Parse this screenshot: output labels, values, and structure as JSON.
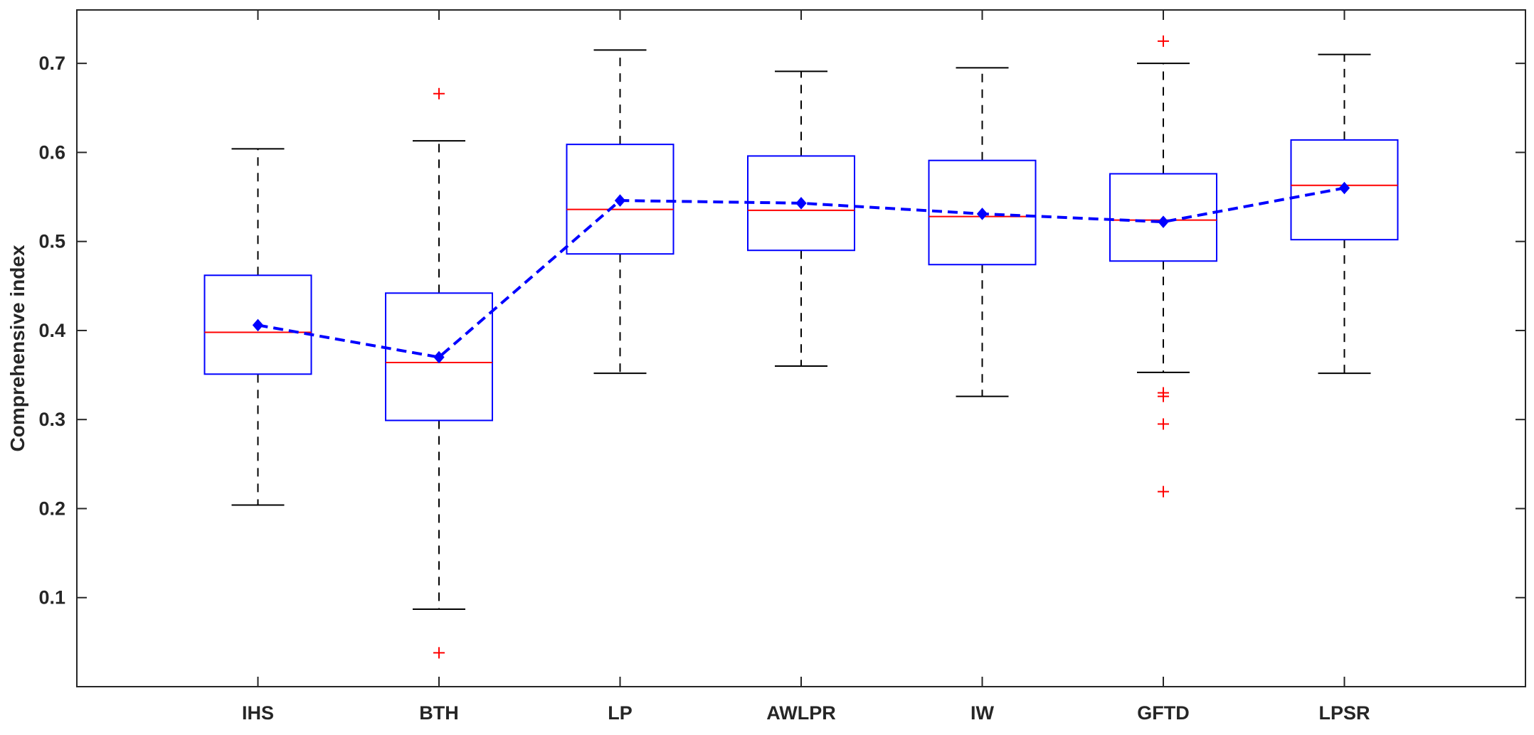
{
  "chart_data": {
    "type": "box",
    "ylabel": "Comprehensive index",
    "ylim": [
      0,
      0.76
    ],
    "yticks": [
      "0.1",
      "0.2",
      "0.3",
      "0.4",
      "0.5",
      "0.6",
      "0.7"
    ],
    "grid": false,
    "categories": [
      "IHS",
      "BTH",
      "LP",
      "AWLPR",
      "IW",
      "GFTD",
      "LPSR"
    ],
    "boxes": [
      {
        "category": "IHS",
        "whisker_low": 0.204,
        "q1": 0.351,
        "median": 0.398,
        "q3": 0.462,
        "whisker_high": 0.604,
        "mean": 0.406,
        "outliers": []
      },
      {
        "category": "BTH",
        "whisker_low": 0.087,
        "q1": 0.299,
        "median": 0.364,
        "q3": 0.442,
        "whisker_high": 0.613,
        "mean": 0.37,
        "outliers": [
          0.666,
          0.038
        ]
      },
      {
        "category": "LP",
        "whisker_low": 0.352,
        "q1": 0.486,
        "median": 0.536,
        "q3": 0.609,
        "whisker_high": 0.715,
        "mean": 0.546,
        "outliers": []
      },
      {
        "category": "AWLPR",
        "whisker_low": 0.36,
        "q1": 0.49,
        "median": 0.535,
        "q3": 0.596,
        "whisker_high": 0.691,
        "mean": 0.543,
        "outliers": []
      },
      {
        "category": "IW",
        "whisker_low": 0.326,
        "q1": 0.474,
        "median": 0.528,
        "q3": 0.591,
        "whisker_high": 0.695,
        "mean": 0.531,
        "outliers": []
      },
      {
        "category": "GFTD",
        "whisker_low": 0.353,
        "q1": 0.478,
        "median": 0.524,
        "q3": 0.576,
        "whisker_high": 0.7,
        "mean": 0.522,
        "outliers": [
          0.725,
          0.33,
          0.326,
          0.295,
          0.219
        ]
      },
      {
        "category": "LPSR",
        "whisker_low": 0.352,
        "q1": 0.502,
        "median": 0.563,
        "q3": 0.614,
        "whisker_high": 0.71,
        "mean": 0.56,
        "outliers": []
      }
    ],
    "colors": {
      "box": "#0000ff",
      "median": "#ff0000",
      "whisker": "#000000",
      "outlier": "#ff0000",
      "mean_line": "#0000ff",
      "axis": "#262626"
    }
  }
}
